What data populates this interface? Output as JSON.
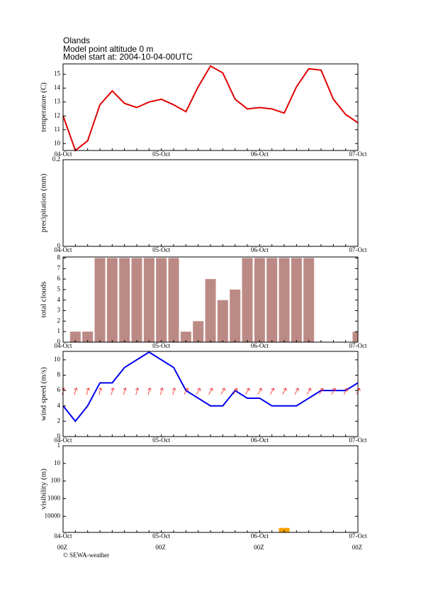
{
  "header": {
    "location": "Olands",
    "altitude": "Model point altitude  0 m",
    "start": "Model start at: 2004-10-04-00UTC"
  },
  "credit": "© SEWA-weather",
  "chart_data": [
    {
      "type": "line",
      "ylabel": "temperature (C)",
      "color": "#e00000",
      "categories": [
        "04-Oct",
        null,
        null,
        null,
        null,
        null,
        null,
        null,
        "05-Oct",
        null,
        null,
        null,
        null,
        null,
        null,
        null,
        "06-Oct",
        null,
        null,
        null,
        null,
        null,
        null,
        null,
        "07-Oct"
      ],
      "values": [
        12.0,
        9.5,
        10.2,
        12.8,
        13.8,
        12.9,
        12.6,
        13.0,
        13.2,
        12.8,
        12.3,
        14.1,
        15.6,
        15.1,
        13.2,
        12.5,
        12.6,
        12.5,
        12.2,
        14.1,
        15.4,
        15.3,
        13.2,
        12.1,
        11.5
      ],
      "ylim": [
        9.5,
        15.75
      ],
      "yticks": [
        10,
        11,
        12,
        13,
        14,
        15
      ]
    },
    {
      "type": "bar",
      "ylabel": "precipitation (mm)",
      "color": "#3070d0",
      "categories": [
        "04-Oct",
        null,
        null,
        null,
        null,
        null,
        null,
        null,
        "05-Oct",
        null,
        null,
        null,
        null,
        null,
        null,
        null,
        "06-Oct",
        null,
        null,
        null,
        null,
        null,
        null,
        null,
        "07-Oct"
      ],
      "values": [
        0,
        0,
        0,
        0,
        0,
        0,
        0,
        0,
        0,
        0,
        0,
        0,
        0,
        0,
        0,
        0,
        0,
        0,
        0,
        0,
        0,
        0,
        0,
        0,
        0
      ],
      "ylim": [
        0,
        0.2
      ],
      "yticks": [
        0,
        0.2
      ]
    },
    {
      "type": "bar",
      "ylabel": "total clouds",
      "color": "#bc8a85",
      "categories": [
        "04-Oct",
        null,
        null,
        null,
        null,
        null,
        null,
        null,
        "05-Oct",
        null,
        null,
        null,
        null,
        null,
        null,
        null,
        "06-Oct",
        null,
        null,
        null,
        null,
        null,
        null,
        null,
        "07-Oct"
      ],
      "values": [
        0,
        1,
        1,
        8,
        8,
        8,
        8,
        8,
        8,
        8,
        1,
        2,
        6,
        4,
        5,
        8,
        8,
        8,
        8,
        8,
        8,
        0,
        0,
        0,
        1
      ],
      "ylim": [
        0,
        8.1
      ],
      "yticks": [
        0,
        1,
        2,
        3,
        4,
        5,
        6,
        7,
        8
      ]
    },
    {
      "type": "line",
      "ylabel": "wind speed (m/s)",
      "color": "#0000ee",
      "arrow_color": "#ee2020",
      "categories": [
        "04-Oct",
        null,
        null,
        null,
        null,
        null,
        null,
        null,
        "05-Oct",
        null,
        null,
        null,
        null,
        null,
        null,
        null,
        "06-Oct",
        null,
        null,
        null,
        null,
        null,
        null,
        null,
        "07-Oct"
      ],
      "values": [
        4,
        2,
        4,
        7,
        7,
        9,
        10,
        11,
        10,
        9,
        6,
        5,
        4,
        4,
        6,
        5,
        5,
        4,
        4,
        4,
        5,
        6,
        6,
        6,
        7
      ],
      "wind_direction": [
        195,
        195,
        195,
        195,
        195,
        195,
        195,
        195,
        195,
        195,
        210,
        210,
        210,
        210,
        210,
        210,
        210,
        210,
        210,
        210,
        210,
        210,
        210,
        210,
        210
      ],
      "ylim": [
        0,
        11.1
      ],
      "yticks": [
        0,
        2,
        4,
        6,
        8,
        10
      ]
    },
    {
      "type": "bar",
      "ylabel": "visibility (m)",
      "color": "#f5a000",
      "log": true,
      "y_inverted": true,
      "categories": [
        "04-Oct",
        null,
        null,
        null,
        null,
        null,
        null,
        null,
        "05-Oct",
        null,
        null,
        null,
        null,
        null,
        null,
        null,
        "06-Oct",
        null,
        null,
        null,
        null,
        null,
        null,
        null,
        "07-Oct"
      ],
      "hour_labels": [
        "00Z",
        null,
        null,
        null,
        null,
        null,
        null,
        null,
        "00Z",
        null,
        null,
        null,
        null,
        null,
        null,
        null,
        "00Z",
        null,
        null,
        null,
        null,
        null,
        null,
        null,
        "00Z"
      ],
      "values": [
        82500,
        82500,
        82500,
        82500,
        82500,
        82500,
        82500,
        82500,
        82500,
        82500,
        82500,
        82500,
        82500,
        82500,
        82500,
        82500,
        82500,
        82500,
        46000,
        82500,
        82500,
        82500,
        82500,
        82500,
        82500
      ],
      "ylim": [
        1,
        82500
      ],
      "yticks": [
        1,
        10,
        100,
        1000,
        10000
      ]
    }
  ]
}
